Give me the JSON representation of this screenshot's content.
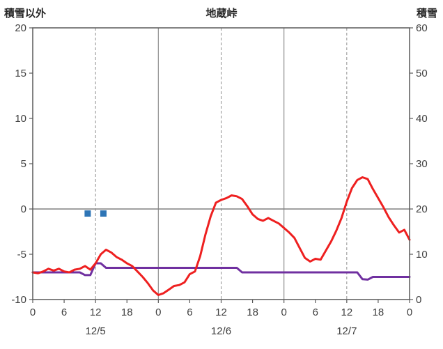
{
  "header": {
    "left_axis_title": "積雪以外",
    "chart_title": "地蔵峠",
    "right_axis_title": "積雪"
  },
  "chart_data": {
    "type": "line",
    "title": "地蔵峠",
    "grid": "partial-vertical-plus-zero-line",
    "legend_position": "none",
    "colors": {
      "grid": "#8f8f8f",
      "zero_line": "#808080",
      "border": "#595959",
      "red_series": "#ee2020",
      "purple_series": "#7030a0",
      "blue_markers": "#2e75b6"
    },
    "left_axis": {
      "label": "積雪以外",
      "min": -10,
      "max": 20,
      "ticks": [
        20,
        15,
        10,
        5,
        0,
        -5,
        -10
      ]
    },
    "right_axis": {
      "label": "積雪",
      "min": 0,
      "max": 60,
      "ticks": [
        60,
        50,
        40,
        30,
        20,
        10,
        0
      ]
    },
    "x_axis": {
      "min": 0,
      "max": 72,
      "unit": "hour",
      "hour_tick_positions": [
        0,
        6,
        12,
        18,
        24,
        30,
        36,
        42,
        48,
        54,
        60,
        66,
        72
      ],
      "hour_tick_labels": [
        "0",
        "6",
        "12",
        "18",
        "0",
        "6",
        "12",
        "18",
        "0",
        "6",
        "12",
        "18",
        "0"
      ],
      "date_labels": [
        {
          "text": "12/5",
          "hour": 12
        },
        {
          "text": "12/6",
          "hour": 36
        },
        {
          "text": "12/7",
          "hour": 60
        }
      ]
    },
    "gridlines": {
      "solid_vertical_hours": [
        24,
        48
      ],
      "dashed_vertical_hours": [
        12,
        36,
        60
      ],
      "zero_line_left_value": 0
    },
    "series": [
      {
        "name": "purple-line-series",
        "type": "line",
        "axis": "right",
        "color": "#7030a0",
        "width": 3,
        "x_start": 0,
        "x_step": 1,
        "values": [
          6,
          6,
          6,
          6,
          6,
          6,
          6,
          6,
          6,
          6,
          5.4,
          5.4,
          8,
          8,
          7,
          7,
          7,
          7,
          7,
          7,
          7,
          7,
          7,
          7,
          7,
          7,
          7,
          7,
          7,
          7,
          7,
          7,
          7,
          7,
          7,
          7,
          7,
          7,
          7,
          7,
          6,
          6,
          6,
          6,
          6,
          6,
          6,
          6,
          6,
          6,
          6,
          6,
          6,
          6,
          6,
          6,
          6,
          6,
          6,
          6,
          6,
          6,
          6,
          4.5,
          4.4,
          5,
          5,
          5,
          5,
          5,
          5,
          5,
          5
        ]
      },
      {
        "name": "red-line-series",
        "type": "line",
        "axis": "left",
        "color": "#ee2020",
        "width": 3,
        "x_start": 0,
        "x_step": 1,
        "values": [
          -7.0,
          -7.1,
          -6.9,
          -6.6,
          -6.8,
          -6.6,
          -6.9,
          -7.0,
          -6.7,
          -6.6,
          -6.3,
          -6.7,
          -6.0,
          -5.0,
          -4.5,
          -4.8,
          -5.3,
          -5.6,
          -6.0,
          -6.3,
          -6.9,
          -7.5,
          -8.2,
          -9.0,
          -9.5,
          -9.3,
          -8.9,
          -8.5,
          -8.4,
          -8.1,
          -7.2,
          -6.9,
          -5.2,
          -2.8,
          -0.8,
          0.7,
          1.0,
          1.2,
          1.5,
          1.4,
          1.1,
          0.3,
          -0.6,
          -1.1,
          -1.3,
          -1.0,
          -1.3,
          -1.6,
          -2.1,
          -2.6,
          -3.2,
          -4.3,
          -5.4,
          -5.8,
          -5.5,
          -5.6,
          -4.6,
          -3.6,
          -2.4,
          -1.0,
          0.8,
          2.3,
          3.2,
          3.5,
          3.3,
          2.2,
          1.2,
          0.2,
          -0.9,
          -1.8,
          -2.6,
          -2.3,
          -3.4
        ]
      },
      {
        "name": "blue-square-markers",
        "type": "squares",
        "axis": "left",
        "color": "#2e75b6",
        "size": 9,
        "hours": [
          10.5,
          13.5
        ],
        "left_values": [
          -0.5,
          -0.5
        ]
      }
    ]
  }
}
